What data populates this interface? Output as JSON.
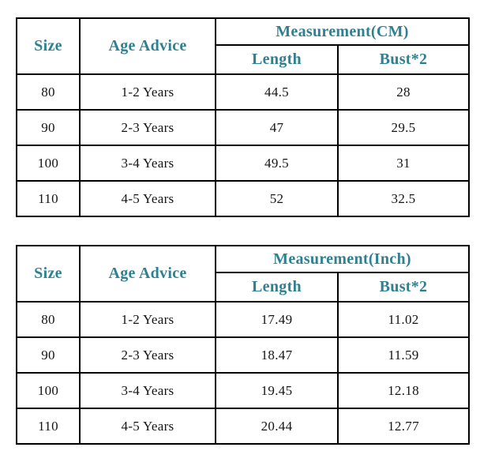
{
  "accent_color": "#2e8191",
  "border_color": "#000000",
  "chart_data": [
    {
      "type": "table",
      "title": "Measurement(CM)",
      "size_header": "Size",
      "age_header": "Age Advice",
      "measurement_header": "Measurement(CM)",
      "length_header": "Length",
      "bust_header": "Bust*2",
      "columns": [
        "Size",
        "Age Advice",
        "Length",
        "Bust*2"
      ],
      "rows": [
        [
          "80",
          "1-2 Years",
          "44.5",
          "28"
        ],
        [
          "90",
          "2-3 Years",
          "47",
          "29.5"
        ],
        [
          "100",
          "3-4 Years",
          "49.5",
          "31"
        ],
        [
          "110",
          "4-5 Years",
          "52",
          "32.5"
        ]
      ]
    },
    {
      "type": "table",
      "title": "Measurement(Inch)",
      "size_header": "Size",
      "age_header": "Age Advice",
      "measurement_header": "Measurement(Inch)",
      "length_header": "Length",
      "bust_header": "Bust*2",
      "columns": [
        "Size",
        "Age Advice",
        "Length",
        "Bust*2"
      ],
      "rows": [
        [
          "80",
          "1-2 Years",
          "17.49",
          "11.02"
        ],
        [
          "90",
          "2-3 Years",
          "18.47",
          "11.59"
        ],
        [
          "100",
          "3-4 Years",
          "19.45",
          "12.18"
        ],
        [
          "110",
          "4-5 Years",
          "20.44",
          "12.77"
        ]
      ]
    }
  ]
}
